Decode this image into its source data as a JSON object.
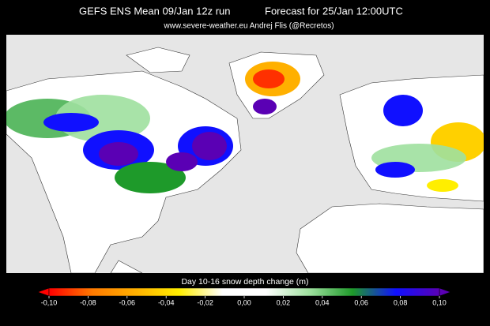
{
  "header": {
    "title_left": "GEFS ENS Mean  09/Jan 12z run",
    "title_right": "Forecast for 25/Jan 12:00UTC",
    "subtitle": "www.severe-weather.eu   Andrej Flis (@Recretos)"
  },
  "colorbar": {
    "label": "Day 10-16 snow depth change (m)",
    "lim": [
      -0.1,
      0.1
    ],
    "colors": [
      "#ff0000",
      "#ff7a00",
      "#ffb000",
      "#ffee00",
      "#ffffff",
      "#ffffff",
      "#9fe09f",
      "#1e9a2a",
      "#1010ff",
      "#5a00b4"
    ],
    "ticks": [
      {
        "value": -0.1,
        "label": "-0,10"
      },
      {
        "value": -0.08,
        "label": "-0,08"
      },
      {
        "value": -0.06,
        "label": "-0,06"
      },
      {
        "value": -0.04,
        "label": "-0,04"
      },
      {
        "value": -0.02,
        "label": "-0,02"
      },
      {
        "value": 0,
        "label": "0,00"
      },
      {
        "value": 0.02,
        "label": "0,02"
      },
      {
        "value": 0.04,
        "label": "0,04"
      },
      {
        "value": 0.06,
        "label": "0,06"
      },
      {
        "value": 0.08,
        "label": "0,08"
      },
      {
        "value": 0.1,
        "label": "0,10"
      }
    ]
  }
}
